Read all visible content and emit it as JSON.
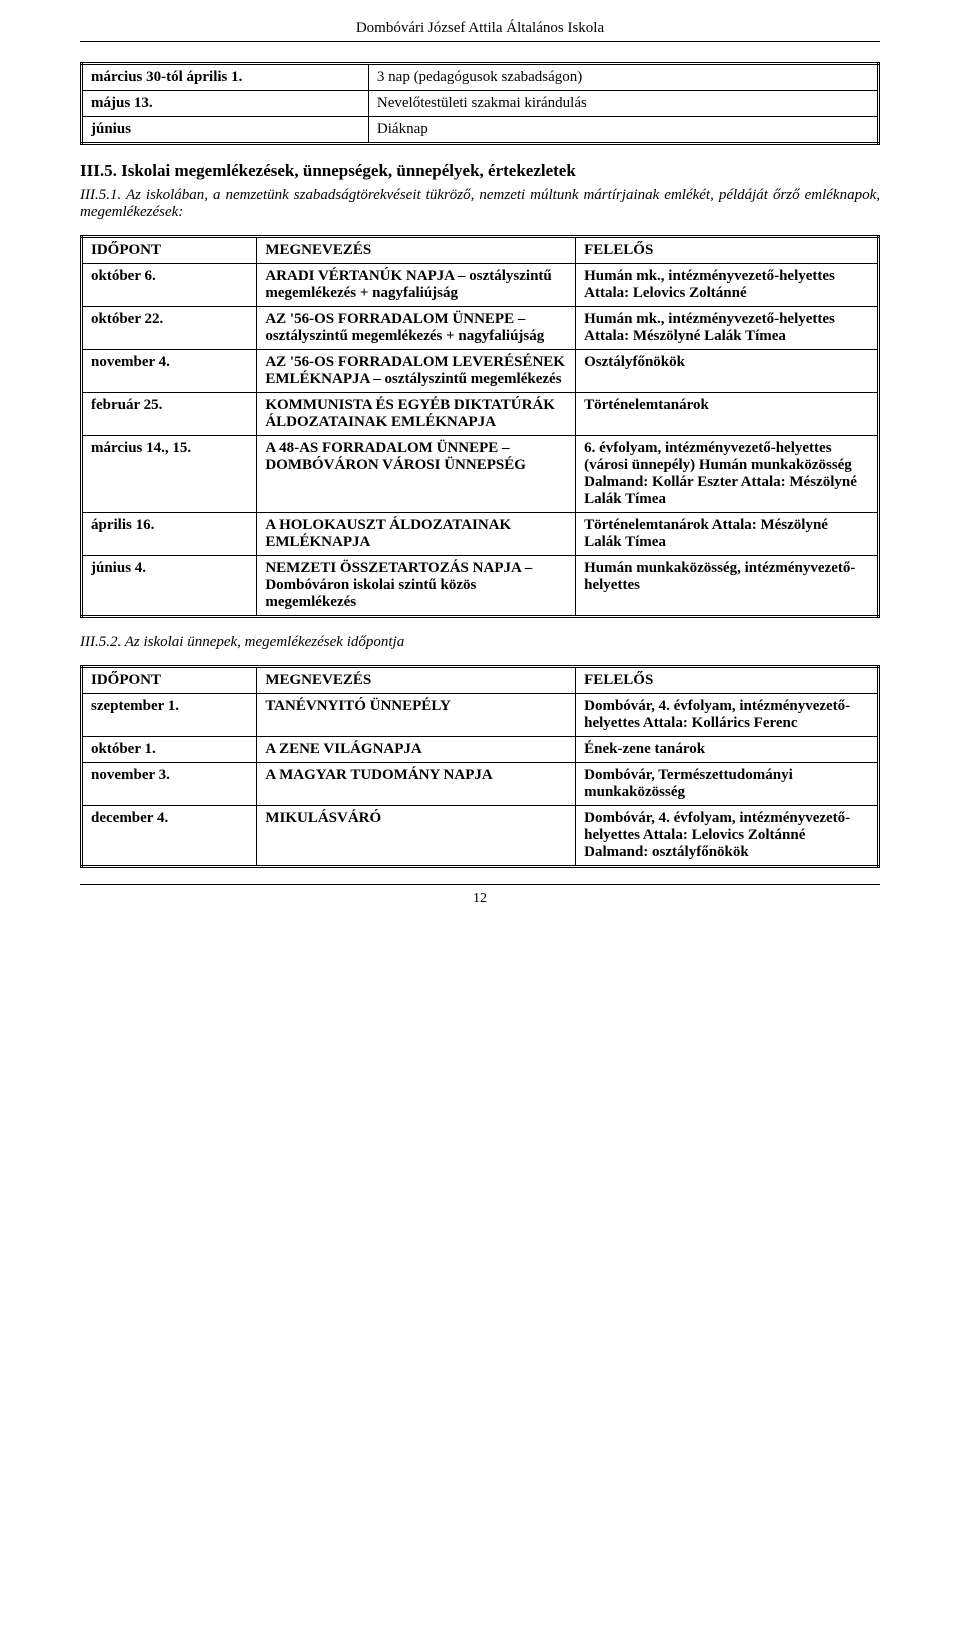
{
  "header": {
    "school_name": "Dombóvári József Attila Általános Iskola"
  },
  "table_small": {
    "rows": [
      {
        "left": "március 30-tól április 1.",
        "right": "3 nap (pedagógusok szabadságon)"
      },
      {
        "left": "május 13.",
        "right": "Nevelőtestületi szakmai kirándulás"
      },
      {
        "left": "június",
        "right": "Diáknap"
      }
    ]
  },
  "section_1": {
    "heading": "III.5. Iskolai megemlékezések, ünnepségek, ünnepélyek, értekezletek",
    "sub": "III.5.1. Az iskolában, a nemzetünk szabadságtörekvéseit tükröző, nemzeti múltunk mártírjainak emlékét, példáját őrző emléknapok, megemlékezések:"
  },
  "table_1": {
    "headers": {
      "c1": "IDŐPONT",
      "c2": "MEGNEVEZÉS",
      "c3": "FELELŐS"
    },
    "rows": [
      {
        "c1": "október 6.",
        "c2": "ARADI VÉRTANÚK NAPJA – osztályszintű megemlékezés + nagyfaliújság",
        "c3": "Humán mk., intézményvezető-helyettes Attala: Lelovics Zoltánné"
      },
      {
        "c1": "október 22.",
        "c2": "AZ '56-OS FORRADALOM ÜNNEPE – osztályszintű megemlékezés + nagyfaliújság",
        "c3": "Humán mk., intézményvezető-helyettes Attala: Mészölyné Lalák Tímea"
      },
      {
        "c1": "november 4.",
        "c2": "AZ '56-OS FORRADALOM LEVERÉSÉNEK EMLÉKNAPJA – osztályszintű megemlékezés",
        "c3": "Osztályfőnökök"
      },
      {
        "c1": "február 25.",
        "c2": "KOMMUNISTA ÉS EGYÉB DIKTATÚRÁK ÁLDOZATAINAK EMLÉKNAPJA",
        "c3": "Történelemtanárok"
      },
      {
        "c1": "március 14., 15.",
        "c2": "A 48-AS FORRADALOM ÜNNEPE – DOMBÓVÁRON VÁROSI ÜNNEPSÉG",
        "c3": "6. évfolyam, intézményvezető-helyettes (városi ünnepély) Humán munkaközösség Dalmand: Kollár Eszter Attala: Mészölyné Lalák Tímea"
      },
      {
        "c1": "április 16.",
        "c2": "A HOLOKAUSZT ÁLDOZATAINAK EMLÉKNAPJA",
        "c3": "Történelemtanárok Attala: Mészölyné Lalák Tímea"
      },
      {
        "c1": "június 4.",
        "c2": "NEMZETI ÖSSZETARTOZÁS NAPJA – Dombóváron iskolai szintű közös megemlékezés",
        "c3": "Humán munkaközösség, intézményvezető-helyettes"
      }
    ]
  },
  "section_2": {
    "sub": "III.5.2. Az iskolai ünnepek, megemlékezések időpontja"
  },
  "table_2": {
    "headers": {
      "c1": "IDŐPONT",
      "c2": "MEGNEVEZÉS",
      "c3": "FELELŐS"
    },
    "rows": [
      {
        "c1": "szeptember 1.",
        "c2": "TANÉVNYITÓ ÜNNEPÉLY",
        "c3": "Dombóvár, 4. évfolyam, intézményvezető-helyettes Attala: Kollárics Ferenc"
      },
      {
        "c1": "október 1.",
        "c2": "A ZENE VILÁGNAPJA",
        "c3": "Ének-zene tanárok"
      },
      {
        "c1": "november 3.",
        "c2": "A MAGYAR TUDOMÁNY NAPJA",
        "c3": "Dombóvár, Természettudományi munkaközösség"
      },
      {
        "c1": "december 4.",
        "c2": "MIKULÁSVÁRÓ",
        "c3": "Dombóvár, 4. évfolyam, intézményvezető-helyettes Attala: Lelovics Zoltánné Dalmand: osztályfőnökök"
      }
    ]
  },
  "footer": {
    "page_num": "12"
  },
  "colors": {
    "text": "#000000",
    "background": "#ffffff",
    "border": "#000000"
  },
  "typography": {
    "body_fontsize": 15,
    "heading_fontsize": 17,
    "footer_fontsize": 14,
    "font_family": "Georgia, Times New Roman, serif"
  }
}
